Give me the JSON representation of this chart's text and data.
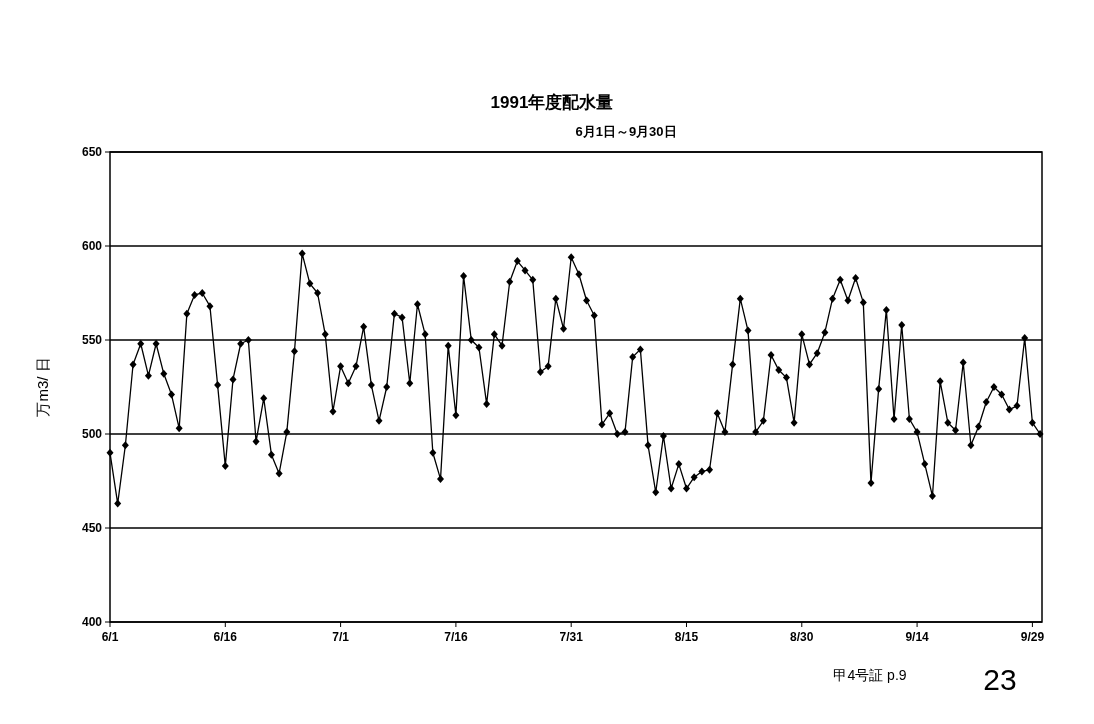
{
  "chart_data": {
    "type": "line",
    "title": "1991年度配水量",
    "subtitle": "6月1日～9月30日",
    "ylabel": "万m3/ 日",
    "annotations": [
      "甲4号証  p.9",
      "23"
    ],
    "categories": [
      "6/1",
      null,
      null,
      null,
      null,
      null,
      null,
      null,
      null,
      null,
      null,
      null,
      null,
      null,
      null,
      "6/16",
      null,
      null,
      null,
      null,
      null,
      null,
      null,
      null,
      null,
      null,
      null,
      null,
      null,
      null,
      "7/1",
      null,
      null,
      null,
      null,
      null,
      null,
      null,
      null,
      null,
      null,
      null,
      null,
      null,
      null,
      "7/16",
      null,
      null,
      null,
      null,
      null,
      null,
      null,
      null,
      null,
      null,
      null,
      null,
      null,
      null,
      "7/31",
      null,
      null,
      null,
      null,
      null,
      null,
      null,
      null,
      null,
      null,
      null,
      null,
      null,
      null,
      "8/15",
      null,
      null,
      null,
      null,
      null,
      null,
      null,
      null,
      null,
      null,
      null,
      null,
      null,
      null,
      "8/30",
      null,
      null,
      null,
      null,
      null,
      null,
      null,
      null,
      null,
      null,
      null,
      null,
      null,
      null,
      "9/14",
      null,
      null,
      null,
      null,
      null,
      null,
      null,
      null,
      null,
      null,
      null,
      null,
      null,
      null,
      "9/29",
      null
    ],
    "series": [
      {
        "color": "#000000",
        "values": [
          490,
          463,
          494,
          537,
          548,
          531,
          548,
          532,
          521,
          503,
          564,
          574,
          575,
          568,
          526,
          483,
          529,
          548,
          550,
          496,
          519,
          489,
          479,
          501,
          544,
          596,
          580,
          575,
          553,
          512,
          536,
          527,
          536,
          557,
          526,
          507,
          525,
          564,
          562,
          527,
          569,
          553,
          490,
          476,
          547,
          510,
          584,
          550,
          546,
          516,
          553,
          547,
          581,
          592,
          587,
          582,
          533,
          536,
          572,
          556,
          594,
          585,
          571,
          563,
          505,
          511,
          500,
          501,
          541,
          545,
          494,
          469,
          499,
          471,
          484,
          471,
          477,
          480,
          481,
          511,
          501,
          537,
          572,
          555,
          501,
          507,
          542,
          534,
          530,
          506,
          553,
          537,
          543,
          554,
          572,
          582,
          571,
          583,
          570,
          474,
          524,
          566,
          508,
          558,
          508,
          501,
          484,
          467,
          528,
          506,
          502,
          538,
          494,
          504,
          517,
          525,
          521,
          513,
          515,
          551,
          506,
          500
        ]
      }
    ],
    "ylim": [
      400,
      650
    ],
    "yticks": [
      400,
      450,
      500,
      550,
      600,
      650
    ],
    "grid": "y",
    "marker": "diamond",
    "line_style": "solid"
  }
}
